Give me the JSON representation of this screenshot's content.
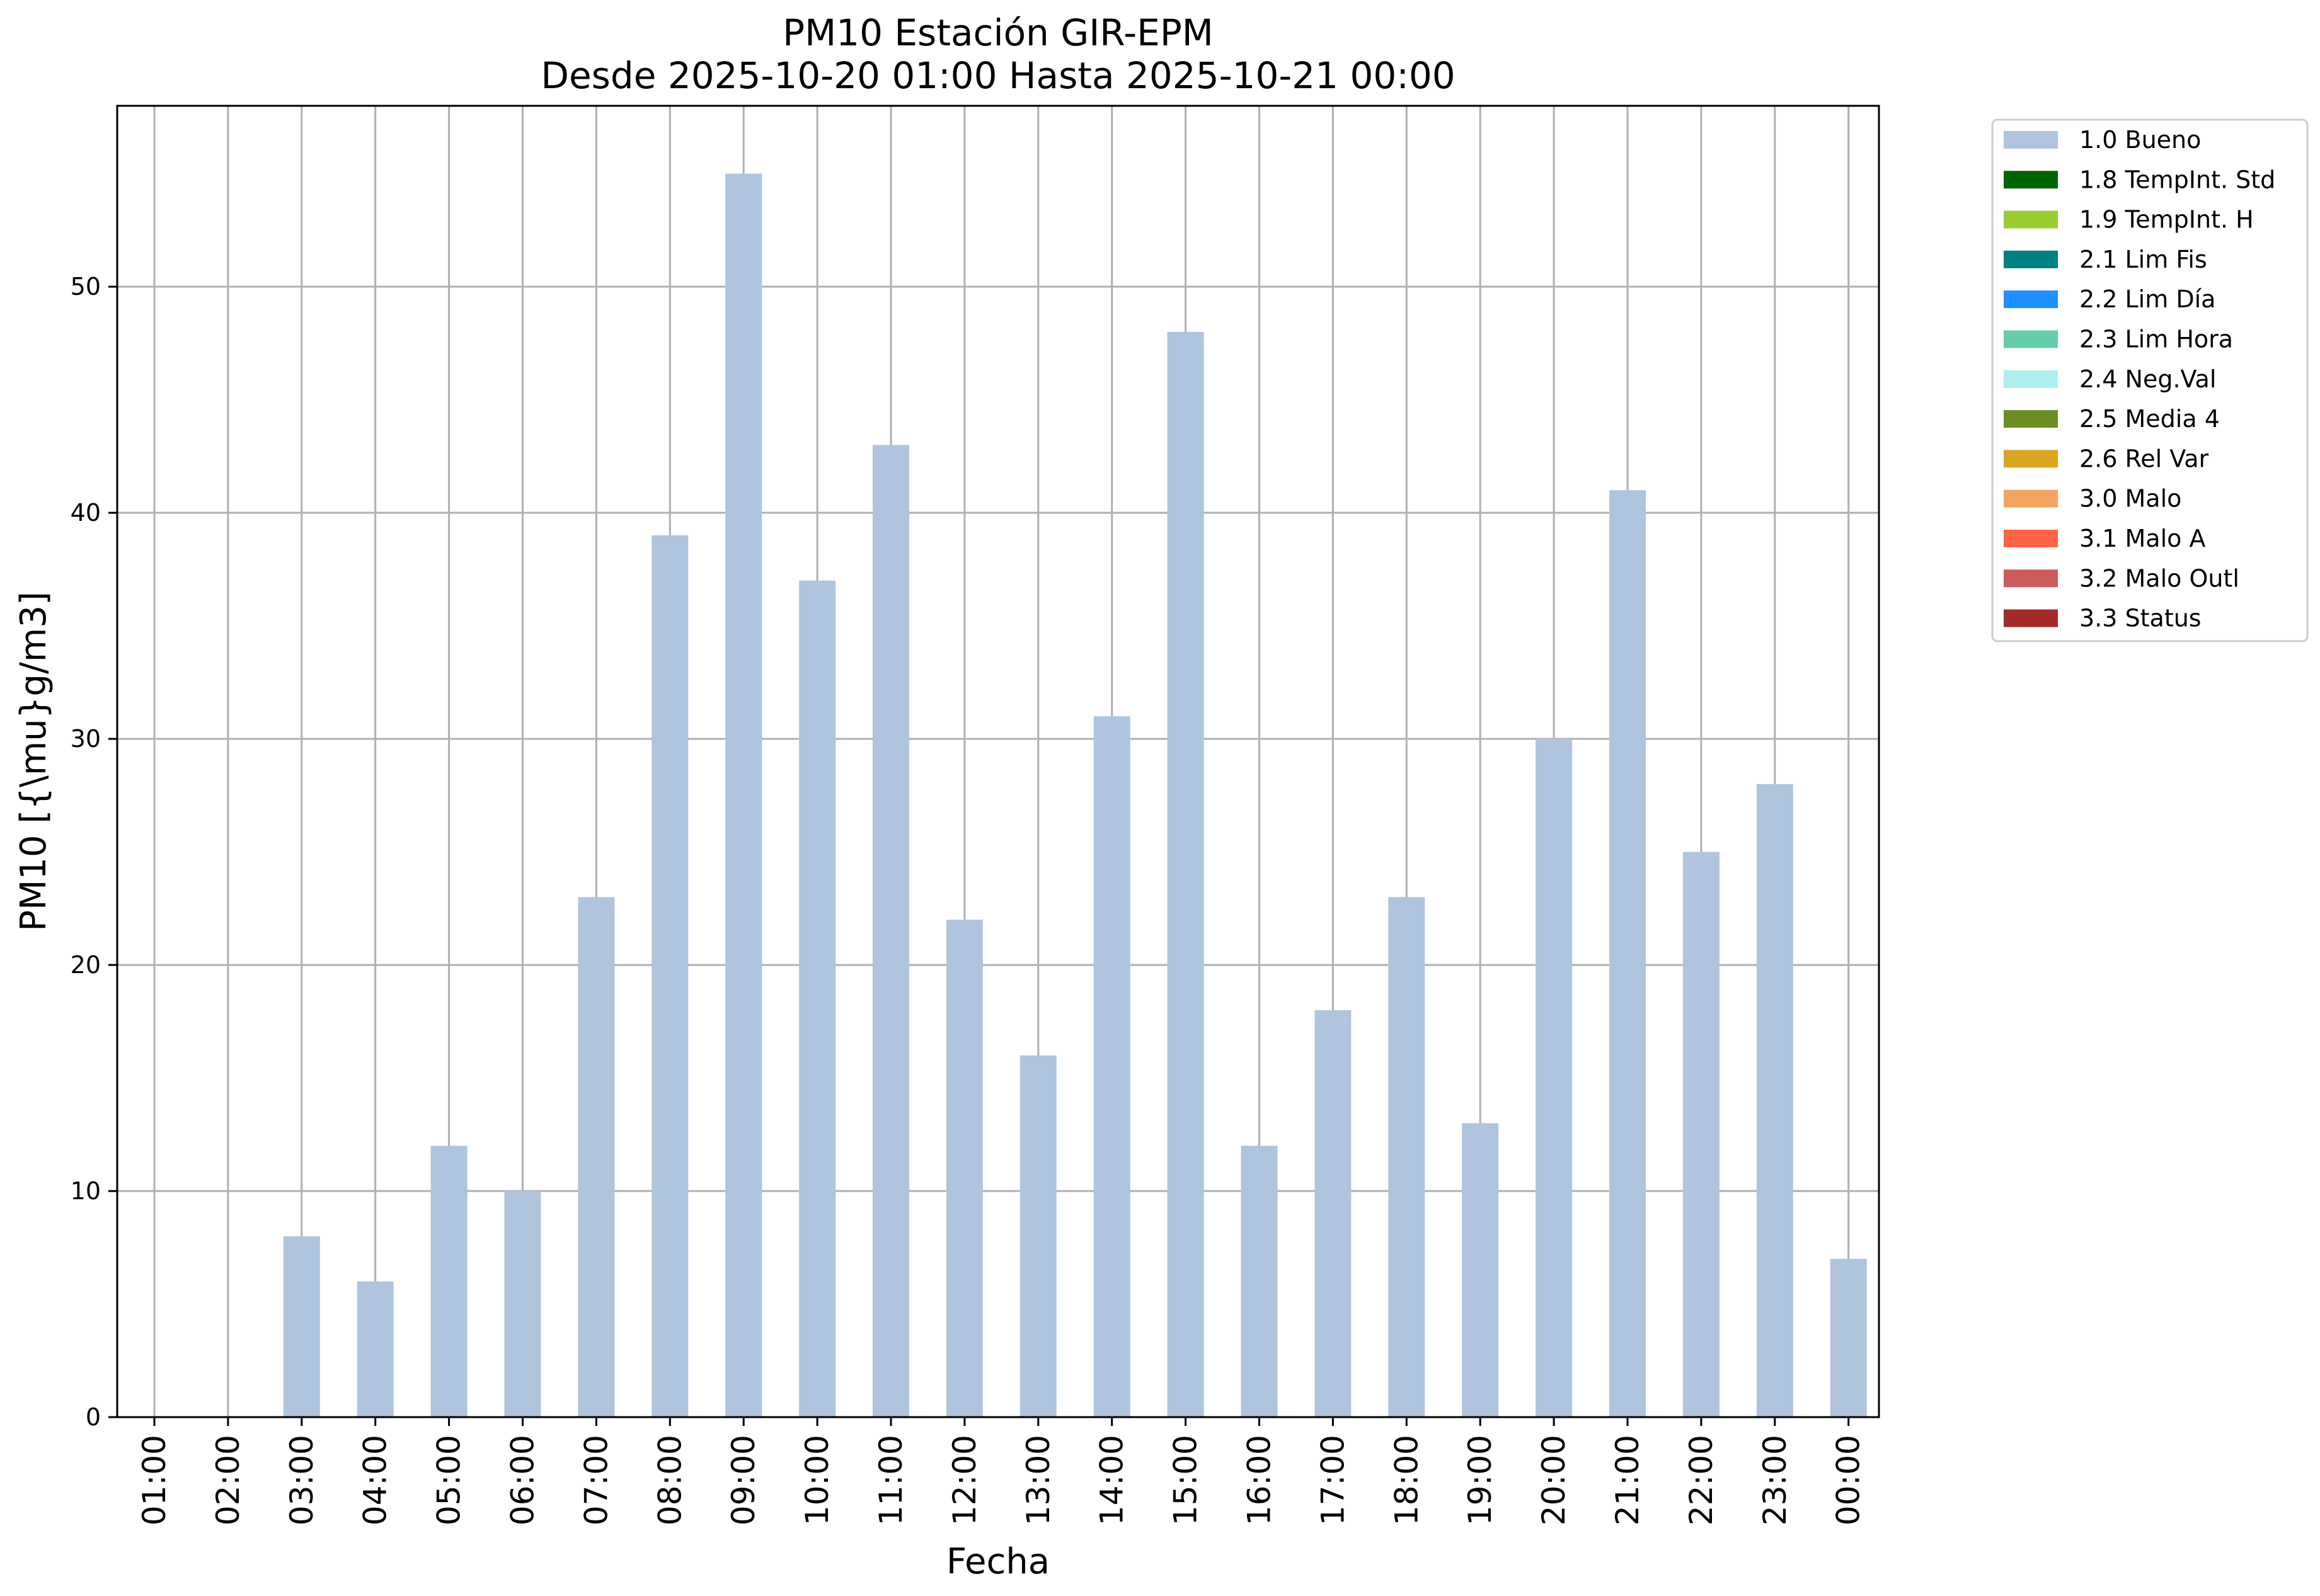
{
  "chart_data": {
    "type": "bar",
    "title": "PM10 Estación GIR-EPM",
    "subtitle": "Desde 2025-10-20 01:00 Hasta 2025-10-21 00:00",
    "xlabel": "Fecha",
    "ylabel": "PM10 [{\\mu}g/m3]",
    "ylim": [
      0,
      58
    ],
    "yticks": [
      0,
      10,
      20,
      30,
      40,
      50
    ],
    "grid": true,
    "legend_position": "outside-top-right",
    "categories": [
      "01:00",
      "02:00",
      "03:00",
      "04:00",
      "05:00",
      "06:00",
      "07:00",
      "08:00",
      "09:00",
      "10:00",
      "11:00",
      "12:00",
      "13:00",
      "14:00",
      "15:00",
      "16:00",
      "17:00",
      "18:00",
      "19:00",
      "20:00",
      "21:00",
      "22:00",
      "23:00",
      "00:00"
    ],
    "series": [
      {
        "name": "1.0 Bueno",
        "color": "#b0c4de",
        "values": [
          0,
          0,
          8,
          6,
          12,
          10,
          23,
          39,
          55,
          37,
          43,
          22,
          16,
          31,
          48,
          12,
          18,
          23,
          13,
          30,
          41,
          25,
          28,
          7
        ]
      }
    ],
    "legend": [
      {
        "label": "1.0 Bueno",
        "color": "#b0c4de"
      },
      {
        "label": "1.8 TempInt. Std",
        "color": "#006400"
      },
      {
        "label": "1.9 TempInt. H",
        "color": "#9acd32"
      },
      {
        "label": "2.1 Lim Fis",
        "color": "#008080"
      },
      {
        "label": "2.2 Lim Día",
        "color": "#1e90ff"
      },
      {
        "label": "2.3 Lim Hora",
        "color": "#66cdaa"
      },
      {
        "label": "2.4 Neg.Val",
        "color": "#afeeee"
      },
      {
        "label": "2.5 Media 4",
        "color": "#6b8e23"
      },
      {
        "label": "2.6 Rel Var",
        "color": "#daa520"
      },
      {
        "label": "3.0 Malo",
        "color": "#f4a460"
      },
      {
        "label": "3.1 Malo A",
        "color": "#ff6347"
      },
      {
        "label": "3.2 Malo Outl",
        "color": "#cd5c5c"
      },
      {
        "label": "3.3 Status",
        "color": "#a52a2a"
      }
    ]
  }
}
